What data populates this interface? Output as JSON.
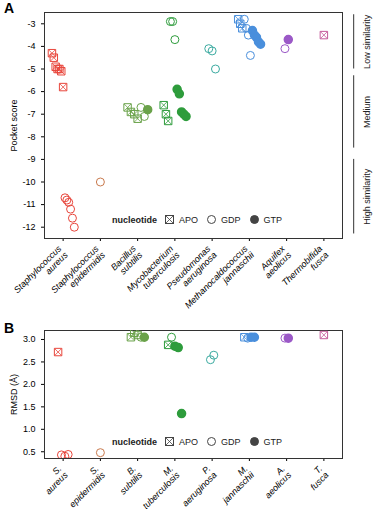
{
  "chart_data": [
    {
      "type": "scatter",
      "panel": "A",
      "y_label": "Pocket score",
      "ylim": [
        -12.5,
        -2.5
      ],
      "yticks": [
        -12,
        -11,
        -10,
        -9,
        -8,
        -7,
        -6,
        -5,
        -4,
        -3
      ],
      "legend": {
        "title": "nucleotide",
        "entries": [
          {
            "name": "APO",
            "marker": "square-cross"
          },
          {
            "name": "GDP",
            "marker": "circle-open"
          },
          {
            "name": "GTP",
            "marker": "circle-filled"
          }
        ]
      },
      "bands": [
        {
          "label": "Low similarity",
          "from": -2.6,
          "to": -5.0
        },
        {
          "label": "Medium",
          "from": -5.3,
          "to": -8.5
        },
        {
          "label": "High similarity",
          "from": -9.0,
          "to": -12.3
        }
      ],
      "categories": [
        "Staphylococcus aureus",
        "Staphylococcus epidermidis",
        "Bacillus subtilis",
        "Mycobacterium tuberculosis",
        "Pseudomonas aeruginosa",
        "Methanocaldococcus jannaschii",
        "Aquifex aeolicus",
        "Thermobifida fusca"
      ],
      "data": [
        {
          "category": "Staphylococcus aureus",
          "color": "#e8463c",
          "APO": [
            -4.3,
            -4.5,
            -4.9,
            -5.0,
            -5.0,
            -5.1,
            -5.8
          ],
          "GDP": [
            -10.7,
            -10.8,
            -10.9,
            -11.2,
            -11.6,
            -12.0
          ],
          "GTP": []
        },
        {
          "category": "Staphylococcus epidermidis",
          "color": "#c97a4e",
          "APO": [],
          "GDP": [
            -10.0
          ],
          "GTP": []
        },
        {
          "category": "Bacillus subtilis",
          "color": "#6aa24a",
          "APO": [
            -6.7,
            -6.9,
            -7.0,
            -7.2
          ],
          "GDP": [
            -6.7,
            -7.1
          ],
          "GTP": [
            -6.8
          ]
        },
        {
          "category": "Mycobacterium tuberculosis",
          "color": "#2e9c3c",
          "APO": [
            -6.6,
            -7.0,
            -7.3
          ],
          "GDP": [
            -2.9,
            -2.9,
            -3.7
          ],
          "GTP": [
            -5.9,
            -6.1,
            -6.9,
            -7.0,
            -7.1
          ]
        },
        {
          "category": "Pseudomonas aeruginosa",
          "color": "#3aaaa0",
          "APO": [],
          "GDP": [
            -4.1,
            -4.2,
            -5.0
          ],
          "GTP": []
        },
        {
          "category": "Methanocaldococcus jannaschii",
          "color": "#4a8fdc",
          "APO": [
            -2.8,
            -3.0,
            -3.2
          ],
          "GDP": [
            -2.8,
            -3.2,
            -3.5,
            -4.4
          ],
          "GTP": [
            -3.3,
            -3.5,
            -3.6,
            -3.8,
            -3.9
          ]
        },
        {
          "category": "Aquifex aeolicus",
          "color": "#9b59c7",
          "APO": [],
          "GDP": [
            -4.1
          ],
          "GTP": [
            -3.7
          ]
        },
        {
          "category": "Thermobifida fusca",
          "color": "#c45a9a",
          "APO": [
            -3.5
          ],
          "GDP": [],
          "GTP": []
        }
      ]
    },
    {
      "type": "scatter",
      "panel": "B",
      "y_label": "RMSD (Å)",
      "ylim": [
        0.35,
        3.2
      ],
      "yticks": [
        0.5,
        {
          "value": 1,
          "label": "1.0"
        },
        1.5,
        {
          "value": 2,
          "label": "2.0"
        },
        2.5,
        {
          "value": 3,
          "label": "3.0"
        }
      ],
      "legend": {
        "title": "nucleotide",
        "entries": [
          {
            "name": "APO",
            "marker": "square-cross"
          },
          {
            "name": "GDP",
            "marker": "circle-open"
          },
          {
            "name": "GTP",
            "marker": "circle-filled"
          }
        ]
      },
      "categories": [
        "S. aureus",
        "S. epidermidis",
        "B. subtilis",
        "M. tuberculosis",
        "P. aeruginosa",
        "M. jannaschii",
        "A. aeolicus",
        "T. fusca"
      ],
      "data": [
        {
          "category": "S. aureus",
          "color": "#e8463c",
          "APO": [
            2.72
          ],
          "GDP": [
            0.43,
            0.4,
            0.44
          ],
          "GTP": []
        },
        {
          "category": "S. epidermidis",
          "color": "#c97a4e",
          "APO": [],
          "GDP": [
            0.48
          ],
          "GTP": []
        },
        {
          "category": "B. subtilis",
          "color": "#6aa24a",
          "APO": [
            3.05,
            3.15,
            3.1
          ],
          "GDP": [
            3.05
          ],
          "GTP": [
            3.05
          ]
        },
        {
          "category": "M. tuberculosis",
          "color": "#2e9c3c",
          "APO": [
            2.88
          ],
          "GDP": [
            3.05
          ],
          "GTP": [
            2.85,
            2.82,
            1.35
          ]
        },
        {
          "category": "P. aeruginosa",
          "color": "#3aaaa0",
          "APO": [],
          "GDP": [
            2.55,
            2.65
          ],
          "GTP": []
        },
        {
          "category": "M. jannaschii",
          "color": "#4a8fdc",
          "APO": [
            3.05
          ],
          "GDP": [
            3.03
          ],
          "GTP": [
            3.05,
            3.05
          ]
        },
        {
          "category": "A. aeolicus",
          "color": "#9b59c7",
          "APO": [],
          "GDP": [
            3.03
          ],
          "GTP": [
            3.03
          ]
        },
        {
          "category": "T. fusca",
          "color": "#c45a9a",
          "APO": [
            3.1
          ],
          "GDP": [],
          "GTP": []
        }
      ]
    }
  ]
}
